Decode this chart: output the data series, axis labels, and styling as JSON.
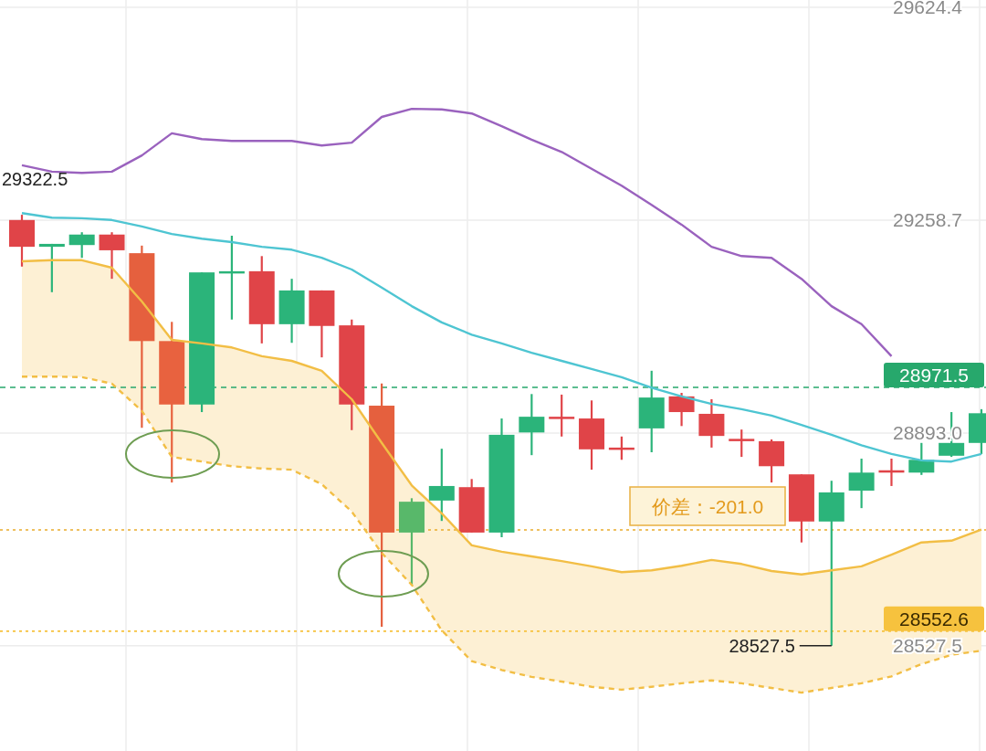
{
  "chart_data": {
    "type": "candlestick",
    "categories": [
      null,
      null,
      null,
      null,
      null,
      null,
      null,
      null,
      null,
      null,
      null,
      null,
      null,
      null,
      null,
      null,
      null,
      null,
      null,
      null,
      null,
      null,
      null,
      null,
      null,
      null,
      null,
      null,
      null,
      null,
      null,
      null,
      null
    ],
    "ohlc": [
      [
        29259,
        29268,
        29179,
        29213
      ],
      [
        29213,
        29218,
        29135,
        29218
      ],
      [
        29216,
        29238,
        29194,
        29234
      ],
      [
        29234,
        29238,
        29158,
        29207
      ],
      [
        29202,
        29215,
        28902,
        29051
      ],
      [
        29051,
        29084,
        28808,
        28942
      ],
      [
        28942,
        29169,
        28929,
        29169
      ],
      [
        29168,
        29232,
        29088,
        29171
      ],
      [
        29171,
        29197,
        29047,
        29080
      ],
      [
        29080,
        29158,
        29048,
        29138
      ],
      [
        29138,
        29138,
        29023,
        29077
      ],
      [
        29078,
        29088,
        28898,
        28942
      ],
      [
        28940,
        28978,
        28560,
        28722
      ],
      [
        28722,
        28781,
        28631,
        28775
      ],
      [
        28777,
        28866,
        28742,
        28802
      ],
      [
        28800,
        28814,
        28722,
        28722
      ],
      [
        28722,
        28918,
        28714,
        28890
      ],
      [
        28894,
        28960,
        28855,
        28921
      ],
      [
        28921,
        28959,
        28887,
        28918
      ],
      [
        28918,
        28949,
        28830,
        28865
      ],
      [
        28868,
        28887,
        28847,
        28865
      ],
      [
        28901,
        29000,
        28860,
        28954
      ],
      [
        28956,
        28962,
        28905,
        28929
      ],
      [
        28926,
        28951,
        28868,
        28888
      ],
      [
        28883,
        28899,
        28852,
        28879
      ],
      [
        28879,
        28882,
        28808,
        28836
      ],
      [
        28822,
        28822,
        28705,
        28741
      ],
      [
        28741,
        28811,
        28527.5,
        28791
      ],
      [
        28794,
        28849,
        28764,
        28825
      ],
      [
        28829,
        28849,
        28802,
        28825
      ],
      [
        28825,
        28876,
        28821,
        28847
      ],
      [
        28854,
        28929,
        28852,
        28876
      ],
      [
        28876,
        28934,
        28857,
        28927
      ]
    ],
    "colors": [
      "#e04448",
      "#2bb47a",
      "#2bb47a",
      "#e04448",
      "#e5603e",
      "#e8623f",
      "#2bb47a",
      "#2bb47a",
      "#e04448",
      "#2bb47a",
      "#e04448",
      "#e04448",
      "#e5603e",
      "#58b86a",
      "#2bb47a",
      "#e04448",
      "#2bb47a",
      "#2bb47a",
      "#e04448",
      "#e04448",
      "#e04448",
      "#2bb47a",
      "#e04448",
      "#e04448",
      "#e04448",
      "#e04448",
      "#e04448",
      "#2bb47a",
      "#2bb47a",
      "#e04448",
      "#2bb47a",
      "#2bb47a",
      "#2bb47a"
    ],
    "series": [
      {
        "type": "line",
        "color": "#9a62be",
        "values": [
          29353,
          29342,
          29340,
          29342,
          29370,
          29408,
          29398,
          29395,
          29395,
          29395,
          29387,
          29392,
          29436,
          29450,
          29449,
          29442,
          29420,
          29397,
          29376,
          29347,
          29318,
          29285,
          29251,
          29213,
          29197,
          29194,
          29158,
          29111,
          29080,
          29025,
          null,
          null,
          null
        ]
      },
      {
        "type": "line",
        "color": "#4ec5d2",
        "values": [
          29271,
          29263,
          29262,
          29259,
          29248,
          29235,
          29227,
          29221,
          29213,
          29208,
          29194,
          29174,
          29143,
          29111,
          29083,
          29062,
          29047,
          29031,
          29017,
          29003,
          28989,
          28971,
          28956,
          28943,
          28934,
          28923,
          28907,
          28890,
          28872,
          28857,
          28846,
          28844,
          28857
        ]
      },
      {
        "type": "line",
        "color": "#f2be45",
        "values": [
          29188,
          29190,
          29190,
          29177,
          29119,
          29053,
          29047,
          29040,
          29025,
          29017,
          29000,
          28951,
          28876,
          28803,
          28755,
          28700,
          28689,
          28681,
          28673,
          28664,
          28654,
          28657,
          28665,
          28675,
          28668,
          28656,
          28650,
          28657,
          28664,
          28684,
          28705,
          28708,
          28727
        ],
        "upper": [
          29188,
          29190,
          29190,
          29177,
          29119,
          29053,
          29047,
          29040,
          29025,
          29017,
          29000,
          28951,
          28876,
          28803,
          28755,
          28700,
          28689,
          28681,
          28673,
          28664,
          28654,
          28657,
          28665,
          28675,
          28668,
          28656,
          28650,
          28657,
          28664,
          28684,
          28705,
          28708,
          28727
        ],
        "lower": [
          28990,
          28990,
          28989,
          28978,
          28931,
          28852,
          28844,
          28836,
          28832,
          28830,
          28805,
          28758,
          28687,
          28632,
          28554,
          28501,
          28486,
          28474,
          28466,
          28457,
          28452,
          28457,
          28463,
          28468,
          28463,
          28455,
          28447,
          28455,
          28463,
          28475,
          28496,
          28512,
          28519
        ]
      },
      {
        "type": "line",
        "color": "#f2be45",
        "line_style": "dashed",
        "values": [
          28990,
          28990,
          28989,
          28978,
          28931,
          28852,
          28844,
          28836,
          28832,
          28830,
          28805,
          28758,
          28687,
          28632,
          28554,
          28501,
          28486,
          28474,
          28466,
          28457,
          28452,
          28457,
          28463,
          28468,
          28463,
          28455,
          28447,
          28455,
          28463,
          28475,
          28496,
          28512,
          28519
        ]
      }
    ],
    "ylim": [
      28346.7,
      29637.0
    ],
    "yticks": [
      29624.4,
      29258.7,
      {
        "value": 28893.0,
        "label": "28893.0"
      },
      28527.5
    ],
    "tick_labels": "y",
    "grid": true,
    "ref_lines": [
      {
        "axis": "y",
        "value": 28971.5,
        "label": "28971.5",
        "color": "#27a86c",
        "line_style": "dashed"
      },
      {
        "axis": "y",
        "value": 28726.6,
        "color": "#e9ac2c",
        "line_style": "dotted"
      },
      {
        "axis": "y",
        "value": 28552.6,
        "label": "28552.6",
        "color": "#f6c23e",
        "line_style": "dotted"
      }
    ],
    "annotations": [
      "价差：-201.0",
      "29322.5",
      "28527.5"
    ]
  }
}
